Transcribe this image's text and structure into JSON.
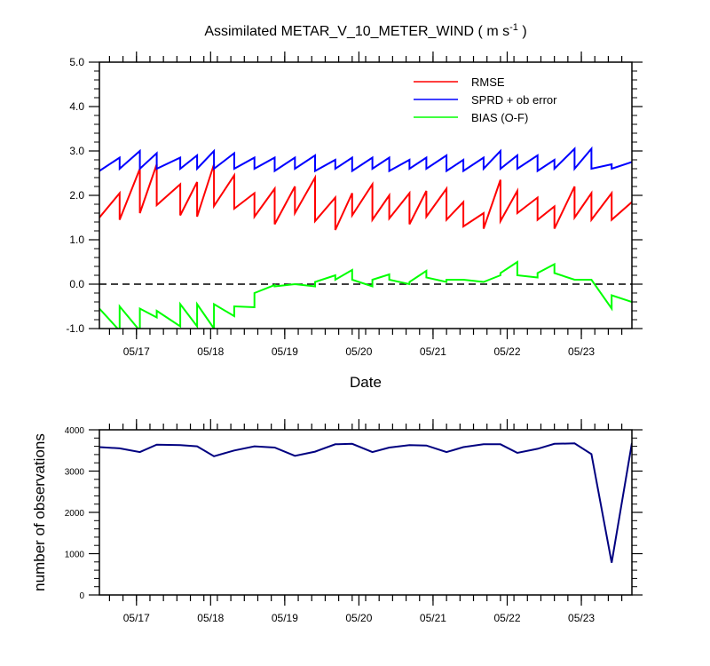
{
  "chart_data": [
    {
      "type": "line",
      "title": "Assimilated METAR_V_10_METER_WIND ( m s",
      "title_superscript": "-1",
      "title_suffix": " )",
      "xlabel": "Date",
      "ylabel": "",
      "xlim": [
        0,
        158
      ],
      "ylim": [
        -1.0,
        5.0
      ],
      "yticks": [
        -1.0,
        0.0,
        1.0,
        2.0,
        3.0,
        4.0,
        5.0
      ],
      "ytick_labels": [
        "-1.0",
        "0.0",
        "1.0",
        "2.0",
        "3.0",
        "4.0",
        "5.0"
      ],
      "xticks": [
        11,
        33,
        55,
        77,
        99,
        121,
        143
      ],
      "xtick_labels": [
        "05/17",
        "05/18",
        "05/19",
        "05/20",
        "05/21",
        "05/22",
        "05/23"
      ],
      "zero_line": true,
      "legend_position": "top-right",
      "series": [
        {
          "name": "RMSE",
          "color": "#ff0000",
          "x": [
            0,
            6,
            6,
            12,
            12,
            17,
            17,
            24,
            24,
            29,
            29,
            34,
            34,
            40,
            40,
            46,
            46,
            52,
            52,
            58,
            58,
            64,
            64,
            70,
            70,
            75,
            75,
            81,
            81,
            86,
            86,
            92,
            92,
            97,
            97,
            103,
            103,
            108,
            108,
            114,
            114,
            119,
            119,
            124,
            124,
            130,
            130,
            135,
            135,
            141,
            141,
            146,
            146,
            152,
            152,
            158
          ],
          "y": [
            1.5,
            2.05,
            1.45,
            2.6,
            1.6,
            2.7,
            1.78,
            2.25,
            1.55,
            2.3,
            1.52,
            2.7,
            1.76,
            2.45,
            1.7,
            2.05,
            1.52,
            2.15,
            1.35,
            2.2,
            1.6,
            2.4,
            1.42,
            1.95,
            1.22,
            2.05,
            1.55,
            2.25,
            1.45,
            2.0,
            1.48,
            2.05,
            1.35,
            2.1,
            1.52,
            2.15,
            1.45,
            1.85,
            1.3,
            1.6,
            1.25,
            2.35,
            1.42,
            2.1,
            1.6,
            1.95,
            1.45,
            1.75,
            1.25,
            2.2,
            1.5,
            2.05,
            1.45,
            2.05,
            1.45,
            1.85
          ]
        },
        {
          "name": "SPRD + ob error",
          "color": "#0000ff",
          "x": [
            0,
            6,
            6,
            12,
            12,
            17,
            17,
            24,
            24,
            29,
            29,
            34,
            34,
            40,
            40,
            46,
            46,
            52,
            52,
            58,
            58,
            64,
            64,
            70,
            70,
            75,
            75,
            81,
            81,
            86,
            86,
            92,
            92,
            97,
            97,
            103,
            103,
            108,
            108,
            114,
            114,
            119,
            119,
            124,
            124,
            130,
            130,
            135,
            135,
            141,
            141,
            146,
            146,
            152,
            152,
            158
          ],
          "y": [
            2.55,
            2.85,
            2.6,
            3.0,
            2.6,
            2.95,
            2.6,
            2.85,
            2.6,
            2.9,
            2.6,
            3.0,
            2.6,
            2.95,
            2.6,
            2.85,
            2.6,
            2.85,
            2.55,
            2.85,
            2.6,
            2.9,
            2.55,
            2.8,
            2.6,
            2.85,
            2.55,
            2.85,
            2.6,
            2.85,
            2.55,
            2.8,
            2.6,
            2.85,
            2.6,
            2.9,
            2.55,
            2.8,
            2.55,
            2.85,
            2.6,
            3.0,
            2.6,
            2.9,
            2.6,
            2.9,
            2.55,
            2.8,
            2.6,
            3.05,
            2.6,
            3.05,
            2.6,
            2.7,
            2.6,
            2.75
          ]
        },
        {
          "name": "BIAS (O-F)",
          "color": "#00ff00",
          "x": [
            0,
            6,
            6,
            12,
            12,
            17,
            17,
            24,
            24,
            29,
            29,
            34,
            34,
            40,
            40,
            46,
            46,
            52,
            52,
            58,
            58,
            64,
            64,
            70,
            70,
            75,
            75,
            81,
            81,
            86,
            86,
            92,
            92,
            97,
            97,
            103,
            103,
            108,
            108,
            114,
            114,
            119,
            119,
            124,
            124,
            130,
            130,
            135,
            135,
            141,
            141,
            146,
            146,
            152,
            152,
            158
          ],
          "y": [
            -0.55,
            -1.05,
            -0.5,
            -1.05,
            -0.55,
            -0.75,
            -0.6,
            -0.95,
            -0.45,
            -0.95,
            -0.45,
            -1.0,
            -0.45,
            -0.72,
            -0.5,
            -0.52,
            -0.2,
            -0.02,
            -0.05,
            0.0,
            0.0,
            -0.05,
            0.05,
            0.2,
            0.1,
            0.32,
            0.1,
            -0.05,
            0.1,
            0.22,
            0.1,
            0.0,
            0.05,
            0.3,
            0.15,
            0.05,
            0.1,
            0.1,
            0.1,
            0.05,
            0.05,
            0.2,
            0.25,
            0.5,
            0.2,
            0.15,
            0.25,
            0.45,
            0.25,
            0.1,
            0.1,
            0.1,
            0.1,
            -0.55,
            -0.25,
            -0.4
          ]
        }
      ]
    },
    {
      "type": "line",
      "title": "",
      "xlabel": "",
      "ylabel": "number of observations",
      "xlim": [
        0,
        158
      ],
      "ylim": [
        0,
        4000
      ],
      "yticks": [
        0,
        1000,
        2000,
        3000,
        4000
      ],
      "ytick_labels": [
        "0",
        "1000",
        "2000",
        "3000",
        "4000"
      ],
      "xticks": [
        11,
        33,
        55,
        77,
        99,
        121,
        143
      ],
      "xtick_labels": [
        "05/17",
        "05/18",
        "05/19",
        "05/20",
        "05/21",
        "05/22",
        "05/23"
      ],
      "series": [
        {
          "color": "#000080",
          "x": [
            0,
            6,
            12,
            17,
            24,
            29,
            34,
            40,
            46,
            52,
            58,
            64,
            70,
            75,
            81,
            86,
            92,
            97,
            103,
            108,
            114,
            119,
            124,
            130,
            135,
            141,
            146,
            152,
            158
          ],
          "y": [
            3580,
            3550,
            3460,
            3640,
            3630,
            3600,
            3360,
            3500,
            3600,
            3570,
            3370,
            3470,
            3650,
            3660,
            3460,
            3570,
            3630,
            3620,
            3460,
            3580,
            3650,
            3650,
            3440,
            3540,
            3660,
            3670,
            3410,
            780,
            3680
          ]
        }
      ]
    }
  ]
}
